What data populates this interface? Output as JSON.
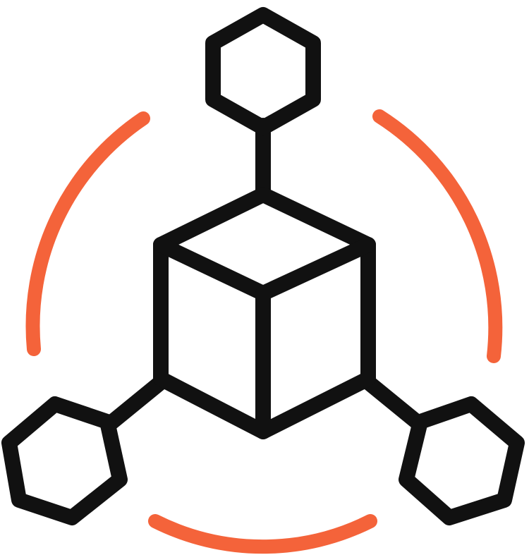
{
  "icon": {
    "name": "network-cube-icon",
    "colors": {
      "outline": "#111111",
      "accent": "#F4633A",
      "background": "#ffffff"
    }
  }
}
